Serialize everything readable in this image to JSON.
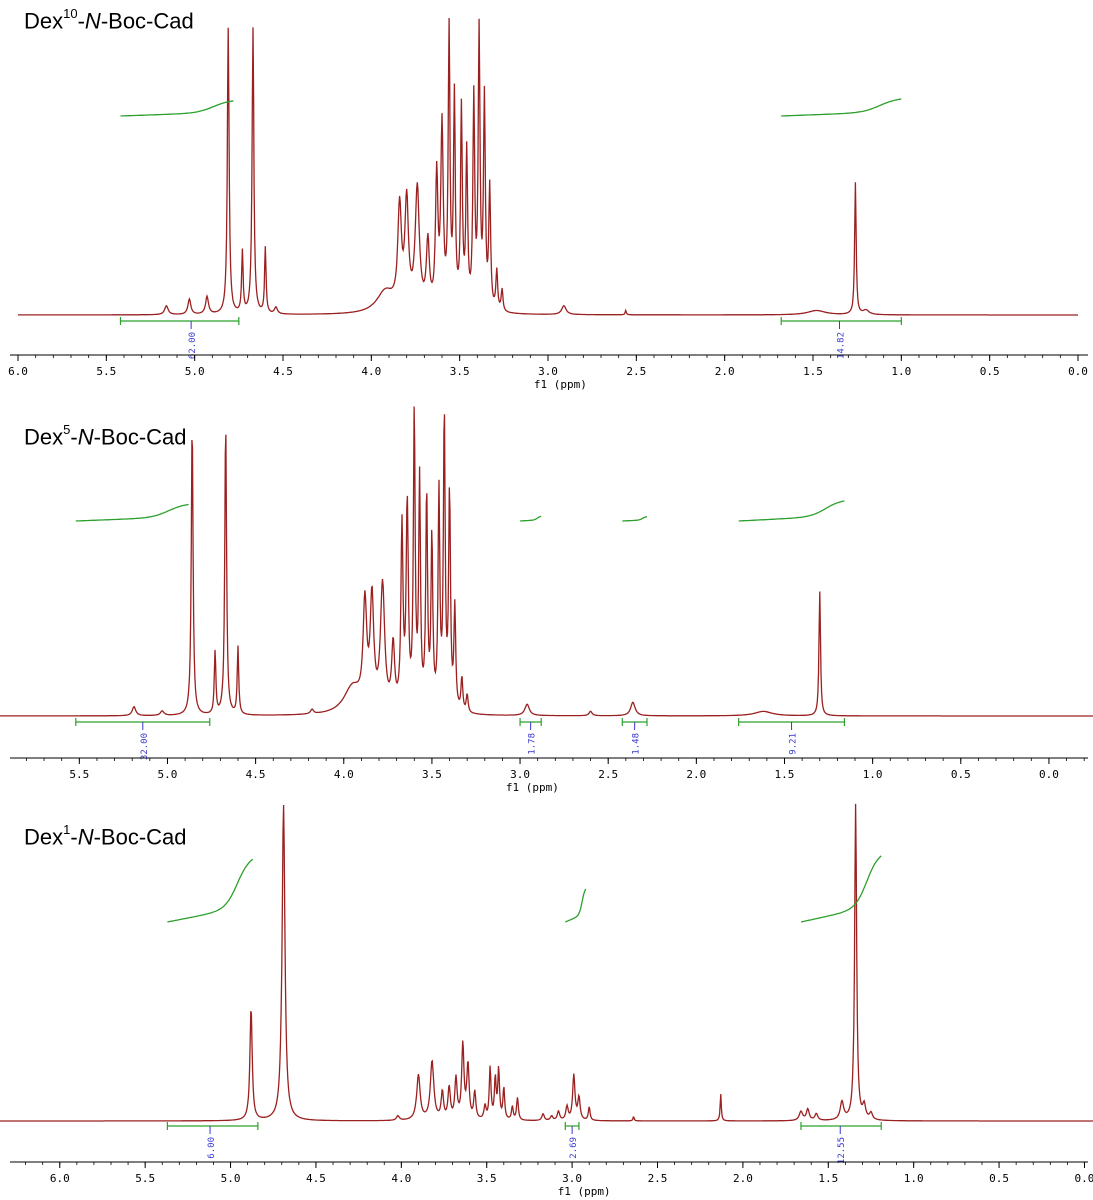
{
  "chart_data": [
    {
      "type": "line",
      "title_prefix": "Dex",
      "title_sup": "10",
      "title_dash": "-",
      "title_italic": "N",
      "title_suffix": "-Boc-Cad",
      "xlabel": "f1 (ppm)",
      "xlim": [
        6.0,
        0.0
      ],
      "x_reversed": true,
      "xticks": [
        "6.0",
        "5.5",
        "5.0",
        "4.5",
        "4.0",
        "3.5",
        "3.0",
        "2.5",
        "2.0",
        "1.5",
        "1.0",
        "0.5",
        "0.0"
      ],
      "peaks": [
        {
          "ppm": 5.16,
          "h": 0.04,
          "w": 0.012
        },
        {
          "ppm": 5.03,
          "h": 0.07,
          "w": 0.01
        },
        {
          "ppm": 4.93,
          "h": 0.08,
          "w": 0.01
        },
        {
          "ppm": 4.81,
          "h": 1.3,
          "w": 0.006
        },
        {
          "ppm": 4.73,
          "h": 0.28,
          "w": 0.005
        },
        {
          "ppm": 4.67,
          "h": 1.3,
          "w": 0.006
        },
        {
          "ppm": 4.6,
          "h": 0.3,
          "w": 0.005
        },
        {
          "ppm": 4.54,
          "h": 0.03,
          "w": 0.01
        },
        {
          "ppm": 3.92,
          "h": 0.1,
          "w": 0.06
        },
        {
          "ppm": 3.84,
          "h": 0.45,
          "w": 0.012
        },
        {
          "ppm": 3.8,
          "h": 0.48,
          "w": 0.012
        },
        {
          "ppm": 3.74,
          "h": 0.55,
          "w": 0.014
        },
        {
          "ppm": 3.68,
          "h": 0.3,
          "w": 0.01
        },
        {
          "ppm": 3.63,
          "h": 0.6,
          "w": 0.008
        },
        {
          "ppm": 3.6,
          "h": 0.82,
          "w": 0.008
        },
        {
          "ppm": 3.56,
          "h": 1.25,
          "w": 0.006
        },
        {
          "ppm": 3.53,
          "h": 0.95,
          "w": 0.006
        },
        {
          "ppm": 3.49,
          "h": 0.9,
          "w": 0.006
        },
        {
          "ppm": 3.46,
          "h": 0.7,
          "w": 0.006
        },
        {
          "ppm": 3.42,
          "h": 0.95,
          "w": 0.006
        },
        {
          "ppm": 3.39,
          "h": 1.25,
          "w": 0.006
        },
        {
          "ppm": 3.36,
          "h": 0.95,
          "w": 0.006
        },
        {
          "ppm": 3.33,
          "h": 0.55,
          "w": 0.006
        },
        {
          "ppm": 3.29,
          "h": 0.18,
          "w": 0.006
        },
        {
          "ppm": 3.26,
          "h": 0.1,
          "w": 0.006
        },
        {
          "ppm": 2.91,
          "h": 0.04,
          "w": 0.015
        },
        {
          "ppm": 2.56,
          "h": 0.02,
          "w": 0.004
        },
        {
          "ppm": 1.48,
          "h": 0.02,
          "w": 0.06
        },
        {
          "ppm": 1.26,
          "h": 0.6,
          "w": 0.005
        },
        {
          "ppm": 1.2,
          "h": 0.02,
          "w": 0.02
        }
      ],
      "integral_curves": [
        {
          "from": 5.42,
          "to": 4.78,
          "rise": 0.8
        },
        {
          "from": 1.68,
          "to": 1.0,
          "rise": 0.9
        }
      ],
      "integrals": [
        {
          "from": 5.42,
          "to": 4.75,
          "center": 5.02,
          "label": "62.00"
        },
        {
          "from": 1.68,
          "to": 1.0,
          "center": 1.35,
          "label": "14.82"
        }
      ]
    },
    {
      "type": "line",
      "title_prefix": "Dex",
      "title_sup": "5",
      "title_dash": "-",
      "title_italic": "N",
      "title_suffix": "-Boc-Cad",
      "xlabel": "f1 (ppm)",
      "xlim": [
        5.95,
        -0.25
      ],
      "x_reversed": true,
      "xticks": [
        "5.5",
        "5.0",
        "4.5",
        "4.0",
        "3.5",
        "3.0",
        "2.5",
        "2.0",
        "1.5",
        "1.0",
        "0.5",
        "0.0"
      ],
      "peaks": [
        {
          "ppm": 5.19,
          "h": 0.04,
          "w": 0.012
        },
        {
          "ppm": 5.03,
          "h": 0.02,
          "w": 0.012
        },
        {
          "ppm": 4.86,
          "h": 1.3,
          "w": 0.006
        },
        {
          "ppm": 4.73,
          "h": 0.28,
          "w": 0.005
        },
        {
          "ppm": 4.67,
          "h": 1.3,
          "w": 0.006
        },
        {
          "ppm": 4.6,
          "h": 0.3,
          "w": 0.005
        },
        {
          "ppm": 4.18,
          "h": 0.02,
          "w": 0.01
        },
        {
          "ppm": 3.95,
          "h": 0.12,
          "w": 0.06
        },
        {
          "ppm": 3.88,
          "h": 0.45,
          "w": 0.012
        },
        {
          "ppm": 3.84,
          "h": 0.48,
          "w": 0.012
        },
        {
          "ppm": 3.78,
          "h": 0.55,
          "w": 0.014
        },
        {
          "ppm": 3.72,
          "h": 0.28,
          "w": 0.01
        },
        {
          "ppm": 3.67,
          "h": 0.8,
          "w": 0.007
        },
        {
          "ppm": 3.64,
          "h": 0.9,
          "w": 0.007
        },
        {
          "ppm": 3.6,
          "h": 1.3,
          "w": 0.006
        },
        {
          "ppm": 3.57,
          "h": 1.0,
          "w": 0.006
        },
        {
          "ppm": 3.53,
          "h": 0.95,
          "w": 0.006
        },
        {
          "ppm": 3.5,
          "h": 0.75,
          "w": 0.006
        },
        {
          "ppm": 3.46,
          "h": 0.95,
          "w": 0.006
        },
        {
          "ppm": 3.43,
          "h": 1.3,
          "w": 0.006
        },
        {
          "ppm": 3.4,
          "h": 0.95,
          "w": 0.006
        },
        {
          "ppm": 3.37,
          "h": 0.45,
          "w": 0.006
        },
        {
          "ppm": 3.33,
          "h": 0.15,
          "w": 0.006
        },
        {
          "ppm": 3.3,
          "h": 0.08,
          "w": 0.006
        },
        {
          "ppm": 2.96,
          "h": 0.05,
          "w": 0.015
        },
        {
          "ppm": 2.6,
          "h": 0.02,
          "w": 0.01
        },
        {
          "ppm": 2.36,
          "h": 0.06,
          "w": 0.015
        },
        {
          "ppm": 1.62,
          "h": 0.02,
          "w": 0.06
        },
        {
          "ppm": 1.3,
          "h": 0.55,
          "w": 0.005
        }
      ],
      "integral_curves": [
        {
          "from": 5.52,
          "to": 4.88,
          "rise": 0.7
        },
        {
          "from": 3.0,
          "to": 2.88,
          "rise": 0.2
        },
        {
          "from": 2.42,
          "to": 2.28,
          "rise": 0.18
        },
        {
          "from": 1.76,
          "to": 1.16,
          "rise": 0.85
        }
      ],
      "integrals": [
        {
          "from": 5.52,
          "to": 4.76,
          "center": 5.14,
          "label": "32.00"
        },
        {
          "from": 3.0,
          "to": 2.88,
          "center": 2.94,
          "label": "1.78"
        },
        {
          "from": 2.42,
          "to": 2.28,
          "center": 2.35,
          "label": "1.48"
        },
        {
          "from": 1.76,
          "to": 1.16,
          "center": 1.46,
          "label": "9.21"
        }
      ]
    },
    {
      "type": "line",
      "title_prefix": "Dex",
      "title_sup": "1",
      "title_dash": "-",
      "title_italic": "N",
      "title_suffix": "-Boc-Cad",
      "xlabel": "f1 (ppm)",
      "xlim": [
        6.35,
        -0.05
      ],
      "x_reversed": true,
      "xticks": [
        "6.0",
        "5.5",
        "5.0",
        "4.5",
        "4.0",
        "3.5",
        "3.0",
        "2.5",
        "2.0",
        "1.5",
        "1.0",
        "0.5",
        "0.0"
      ],
      "peaks": [
        {
          "ppm": 4.88,
          "h": 0.5,
          "w": 0.008
        },
        {
          "ppm": 4.69,
          "h": 1.4,
          "w": 0.01
        },
        {
          "ppm": 4.02,
          "h": 0.02,
          "w": 0.01
        },
        {
          "ppm": 3.9,
          "h": 0.2,
          "w": 0.012
        },
        {
          "ppm": 3.82,
          "h": 0.26,
          "w": 0.012
        },
        {
          "ppm": 3.76,
          "h": 0.12,
          "w": 0.008
        },
        {
          "ppm": 3.72,
          "h": 0.14,
          "w": 0.008
        },
        {
          "ppm": 3.68,
          "h": 0.18,
          "w": 0.008
        },
        {
          "ppm": 3.64,
          "h": 0.33,
          "w": 0.008
        },
        {
          "ppm": 3.61,
          "h": 0.24,
          "w": 0.008
        },
        {
          "ppm": 3.57,
          "h": 0.12,
          "w": 0.007
        },
        {
          "ppm": 3.51,
          "h": 0.06,
          "w": 0.007
        },
        {
          "ppm": 3.48,
          "h": 0.23,
          "w": 0.006
        },
        {
          "ppm": 3.45,
          "h": 0.18,
          "w": 0.006
        },
        {
          "ppm": 3.43,
          "h": 0.22,
          "w": 0.006
        },
        {
          "ppm": 3.4,
          "h": 0.14,
          "w": 0.006
        },
        {
          "ppm": 3.35,
          "h": 0.06,
          "w": 0.006
        },
        {
          "ppm": 3.32,
          "h": 0.1,
          "w": 0.006
        },
        {
          "ppm": 3.17,
          "h": 0.03,
          "w": 0.008
        },
        {
          "ppm": 3.12,
          "h": 0.02,
          "w": 0.008
        },
        {
          "ppm": 3.08,
          "h": 0.04,
          "w": 0.008
        },
        {
          "ppm": 3.03,
          "h": 0.06,
          "w": 0.008
        },
        {
          "ppm": 2.99,
          "h": 0.2,
          "w": 0.008
        },
        {
          "ppm": 2.96,
          "h": 0.1,
          "w": 0.008
        },
        {
          "ppm": 2.9,
          "h": 0.06,
          "w": 0.006
        },
        {
          "ppm": 2.64,
          "h": 0.02,
          "w": 0.004
        },
        {
          "ppm": 2.13,
          "h": 0.12,
          "w": 0.004
        },
        {
          "ppm": 1.66,
          "h": 0.04,
          "w": 0.012
        },
        {
          "ppm": 1.62,
          "h": 0.05,
          "w": 0.01
        },
        {
          "ppm": 1.57,
          "h": 0.03,
          "w": 0.01
        },
        {
          "ppm": 1.42,
          "h": 0.08,
          "w": 0.012
        },
        {
          "ppm": 1.34,
          "h": 1.4,
          "w": 0.007
        },
        {
          "ppm": 1.29,
          "h": 0.06,
          "w": 0.01
        },
        {
          "ppm": 1.25,
          "h": 0.03,
          "w": 0.01
        }
      ],
      "integral_curves": [
        {
          "from": 5.37,
          "to": 4.87,
          "rise": 0.95
        },
        {
          "from": 3.04,
          "to": 2.92,
          "rise": 0.5
        },
        {
          "from": 1.66,
          "to": 1.19,
          "rise": 1.0
        }
      ],
      "integrals": [
        {
          "from": 5.37,
          "to": 4.84,
          "center": 5.12,
          "label": "6.00"
        },
        {
          "from": 3.04,
          "to": 2.96,
          "center": 3.0,
          "label": "2.69"
        },
        {
          "from": 1.66,
          "to": 1.19,
          "center": 1.43,
          "label": "12.55"
        }
      ]
    }
  ],
  "colors": {
    "spectrum": "#9b2020",
    "integral_curve": "#2ca02c",
    "integral_bar": "#2ca02c",
    "integral_label": "#3a3ad0",
    "axis": "#000000"
  }
}
